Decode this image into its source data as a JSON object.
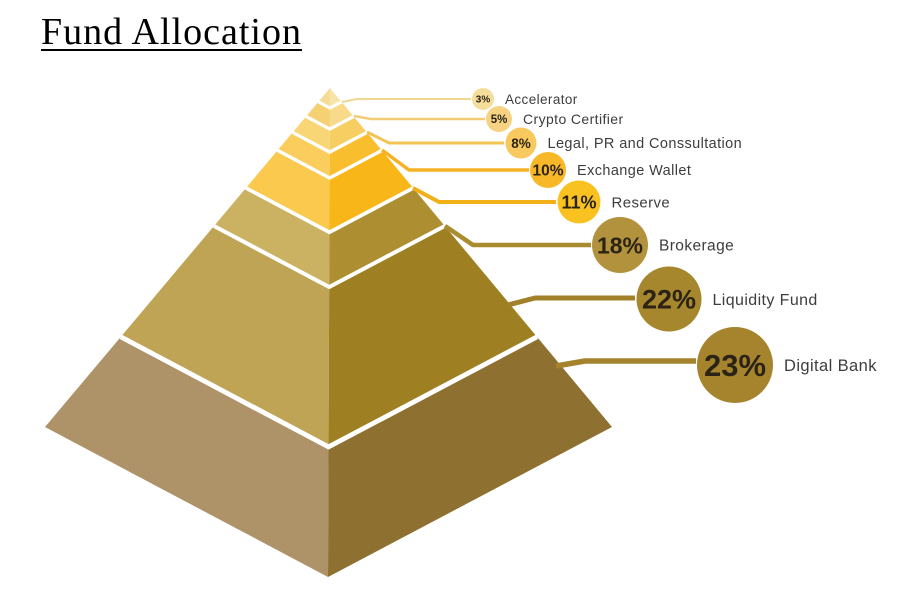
{
  "title": "Fund Allocation",
  "chart_data": {
    "type": "pie",
    "variant": "3d-stepped-pyramid",
    "title": "Fund Allocation",
    "unit": "%",
    "values_sum": 100,
    "legend_position": "right-cascading-callouts",
    "background": "#FFFFFF",
    "text_colors": {
      "percent": "#2B2416",
      "label": "#3D3D3D",
      "title": "#000000"
    },
    "segments": [
      {
        "label": "Accelerator",
        "value": 3,
        "pct_label": "3%",
        "circle_color": "#F5DD9B",
        "face_left": "#F4DC97",
        "face_right": "#F8E5A9",
        "line_color": "#EFD691"
      },
      {
        "label": "Crypto Certifier",
        "value": 5,
        "pct_label": "5%",
        "circle_color": "#F6D383",
        "face_left": "#F5D172",
        "face_right": "#F8DA8A",
        "line_color": "#F2CD76"
      },
      {
        "label": "Legal, PR and Conssultation",
        "value": 8,
        "pct_label": "8%",
        "circle_color": "#F8C95F",
        "face_left": "#F9D675",
        "face_right": "#F7CE61",
        "line_color": "#F4C355"
      },
      {
        "label": "Exchange Wallet",
        "value": 10,
        "pct_label": "10%",
        "circle_color": "#F8B727",
        "face_left": "#FACD5C",
        "face_right": "#F8BE2E",
        "line_color": "#F5B224"
      },
      {
        "label": "Reserve",
        "value": 11,
        "pct_label": "11%",
        "circle_color": "#F9C221",
        "face_left": "#FAC94E",
        "face_right": "#F8B618",
        "line_color": "#F0B016"
      },
      {
        "label": "Brokerage",
        "value": 18,
        "pct_label": "18%",
        "circle_color": "#B2923C",
        "face_left": "#CBB162",
        "face_right": "#AD8F32",
        "line_color": "#A98C2E"
      },
      {
        "label": "Liquidity Fund",
        "value": 22,
        "pct_label": "22%",
        "circle_color": "#A6872E",
        "face_left": "#C0A456",
        "face_right": "#9E8023",
        "line_color": "#A0812A"
      },
      {
        "label": "Digital Bank",
        "value": 23,
        "pct_label": "23%",
        "circle_color": "#A6842E",
        "face_left": "#AE9268",
        "face_right": "#8E7130",
        "line_color": "#A5832D"
      }
    ]
  }
}
